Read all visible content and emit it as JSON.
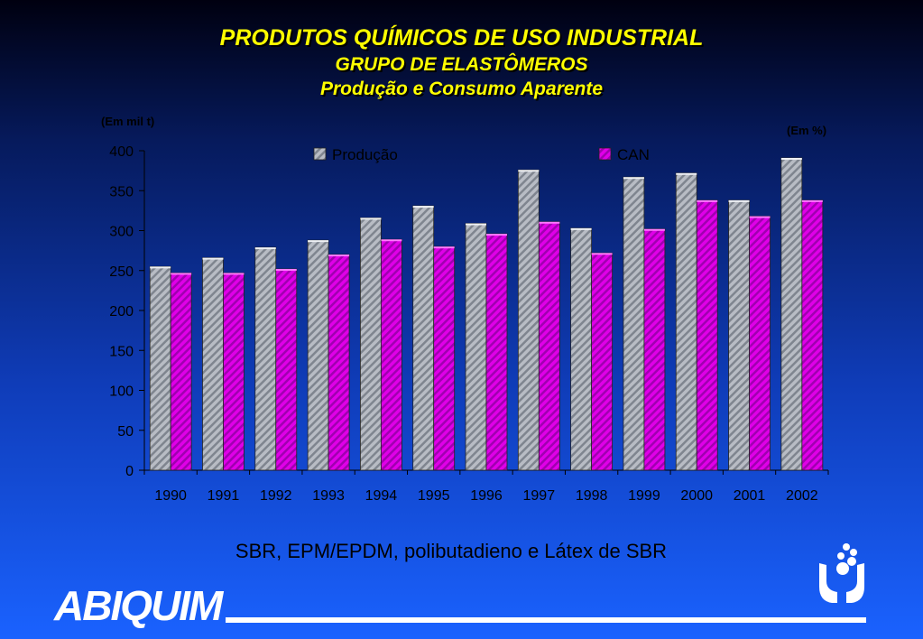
{
  "header": {
    "title": "PRODUTOS QUÍMICOS DE USO INDUSTRIAL",
    "subtitle": "GRUPO DE ELASTÔMEROS",
    "subtitle2": "Produção e Consumo Aparente"
  },
  "units": {
    "left": "(Em mil t)",
    "right": "(Em %)"
  },
  "footer": {
    "note": "SBR, EPM/EPDM, polibutadieno e Látex de SBR",
    "logo": "ABIQUIM"
  },
  "colors": {
    "producao": "#b8bcc4",
    "can": "#e000e8",
    "title": "#ffff00"
  },
  "icons": {
    "logo_mark": "hands-molecule-icon"
  },
  "chart_data": {
    "type": "bar",
    "categories": [
      "1990",
      "1991",
      "1992",
      "1993",
      "1994",
      "1995",
      "1996",
      "1997",
      "1998",
      "1999",
      "2000",
      "2001",
      "2002"
    ],
    "series": [
      {
        "name": "Produção",
        "values": [
          255,
          266,
          279,
          288,
          316,
          331,
          309,
          376,
          303,
          367,
          372,
          338,
          391
        ]
      },
      {
        "name": "CAN",
        "values": [
          247,
          247,
          252,
          270,
          289,
          280,
          296,
          311,
          272,
          302,
          338,
          318,
          338
        ]
      }
    ],
    "yticks": [
      0,
      50,
      100,
      150,
      200,
      250,
      300,
      350,
      400
    ],
    "ylim": [
      0,
      400
    ],
    "grid": false,
    "legend": "top"
  }
}
